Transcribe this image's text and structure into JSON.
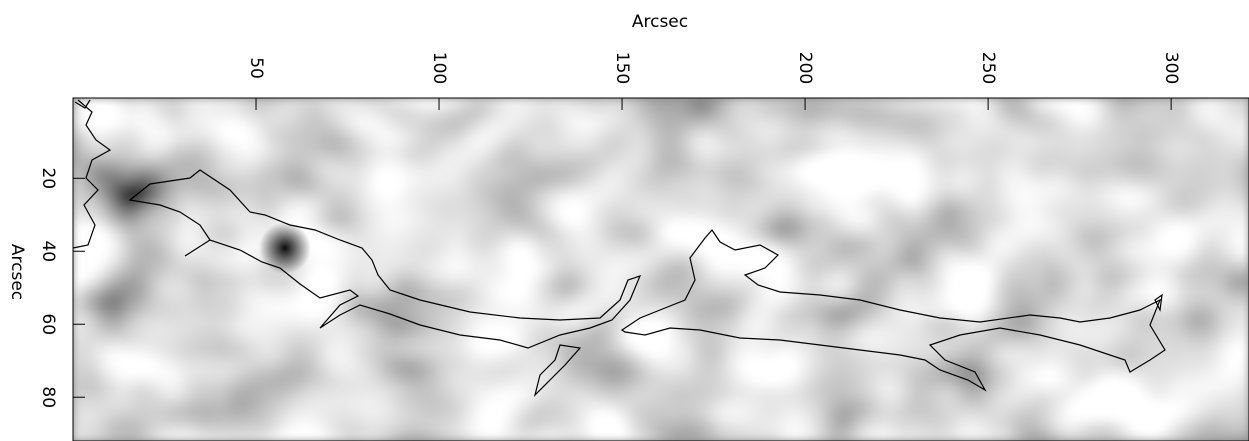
{
  "chart_data": {
    "type": "image",
    "xlabel": "Arcsec",
    "ylabel": "Arcsec",
    "xlim": [
      0,
      318
    ],
    "xticks": [
      50,
      100,
      150,
      200,
      250,
      300
    ],
    "ylim": [
      -2,
      92
    ],
    "yticks": [
      20,
      40,
      60,
      80
    ]
  }
}
